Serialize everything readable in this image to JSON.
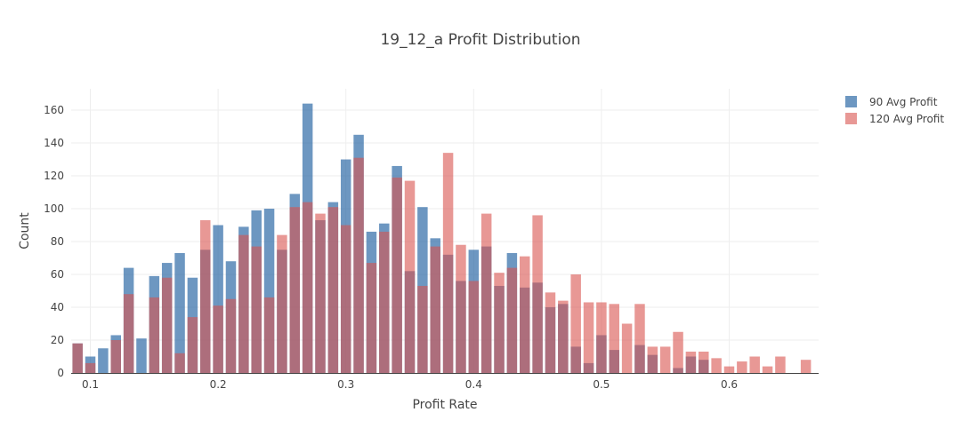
{
  "chart_data": {
    "type": "bar",
    "barmode": "overlay",
    "title": "19_12_a Profit Distribution",
    "xlabel": "Profit Rate",
    "ylabel": "Count",
    "xlim": [
      0.085,
      0.67
    ],
    "ylim": [
      0,
      173
    ],
    "x_ticks": [
      0.1,
      0.2,
      0.3,
      0.4,
      0.5,
      0.6
    ],
    "x_tick_labels": [
      "0.1",
      "0.2",
      "0.3",
      "0.4",
      "0.5",
      "0.6"
    ],
    "y_ticks": [
      0,
      20,
      40,
      60,
      80,
      100,
      120,
      140,
      160
    ],
    "y_tick_labels": [
      "0",
      "20",
      "40",
      "60",
      "80",
      "100",
      "120",
      "140",
      "160"
    ],
    "bin_width": 0.01,
    "grid": true,
    "legend_position": "top-right",
    "series": [
      {
        "name": "90 Avg Profit",
        "color": "#1f5f9f",
        "opacity": 0.65,
        "x": [
          0.09,
          0.1,
          0.11,
          0.12,
          0.13,
          0.14,
          0.15,
          0.16,
          0.17,
          0.18,
          0.19,
          0.2,
          0.21,
          0.22,
          0.23,
          0.24,
          0.25,
          0.26,
          0.27,
          0.28,
          0.29,
          0.3,
          0.31,
          0.32,
          0.33,
          0.34,
          0.35,
          0.36,
          0.37,
          0.38,
          0.39,
          0.4,
          0.41,
          0.42,
          0.43,
          0.44,
          0.45,
          0.46,
          0.47,
          0.48,
          0.49,
          0.5,
          0.51,
          0.52,
          0.53,
          0.54,
          0.55,
          0.56,
          0.57,
          0.58
        ],
        "values": [
          18,
          10,
          15,
          23,
          64,
          21,
          59,
          67,
          73,
          58,
          75,
          90,
          68,
          89,
          99,
          100,
          75,
          109,
          164,
          93,
          104,
          130,
          145,
          86,
          91,
          126,
          62,
          101,
          82,
          72,
          56,
          75,
          77,
          53,
          73,
          52,
          55,
          40,
          42,
          16,
          6,
          23,
          14,
          0,
          17,
          11,
          0,
          3,
          10,
          8
        ]
      },
      {
        "name": "120 Avg Profit",
        "color": "#d9534f",
        "opacity": 0.6,
        "x": [
          0.09,
          0.1,
          0.11,
          0.12,
          0.13,
          0.15,
          0.16,
          0.17,
          0.18,
          0.19,
          0.2,
          0.21,
          0.22,
          0.23,
          0.24,
          0.25,
          0.26,
          0.27,
          0.28,
          0.29,
          0.3,
          0.31,
          0.32,
          0.33,
          0.34,
          0.35,
          0.36,
          0.37,
          0.38,
          0.39,
          0.4,
          0.41,
          0.42,
          0.43,
          0.44,
          0.45,
          0.46,
          0.47,
          0.48,
          0.49,
          0.5,
          0.51,
          0.52,
          0.53,
          0.54,
          0.55,
          0.56,
          0.57,
          0.58,
          0.59,
          0.6,
          0.61,
          0.62,
          0.63,
          0.64,
          0.66
        ],
        "values": [
          18,
          6,
          0,
          20,
          48,
          46,
          58,
          12,
          34,
          93,
          41,
          45,
          84,
          77,
          46,
          84,
          101,
          104,
          97,
          101,
          90,
          131,
          67,
          86,
          119,
          117,
          53,
          77,
          134,
          78,
          56,
          97,
          61,
          64,
          71,
          96,
          49,
          44,
          60,
          43,
          43,
          42,
          30,
          42,
          16,
          16,
          25,
          13,
          13,
          9,
          4,
          7,
          10,
          4,
          10,
          8
        ]
      }
    ]
  }
}
